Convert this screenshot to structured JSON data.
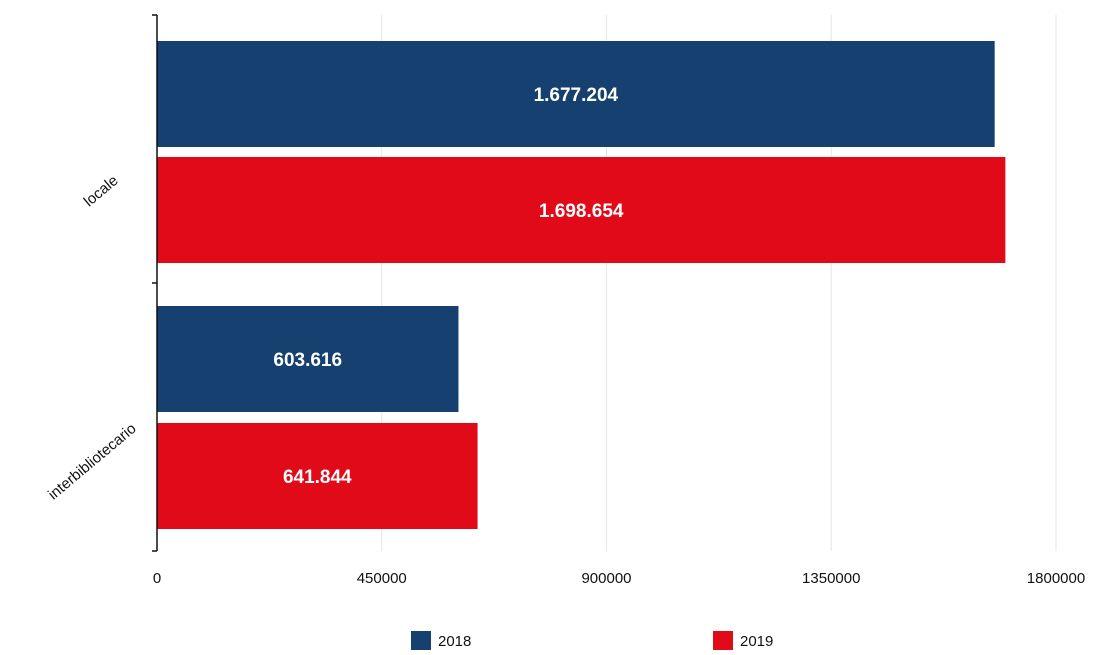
{
  "chart_data": {
    "type": "bar",
    "orientation": "horizontal",
    "categories": [
      "locale",
      "interbibliotecario"
    ],
    "series": [
      {
        "name": "2018",
        "color": "#16406f",
        "values": [
          1677204,
          603616
        ],
        "labels": [
          "1.677.204",
          "603.616"
        ]
      },
      {
        "name": "2019",
        "color": "#e00a18",
        "values": [
          1698654,
          641844
        ],
        "labels": [
          "1.698.654",
          "641.844"
        ]
      }
    ],
    "xlim": [
      0,
      1800000
    ],
    "xticks": [
      "0",
      "450000",
      "900000",
      "1350000",
      "1800000"
    ],
    "grid": true,
    "legend": "bottom"
  }
}
